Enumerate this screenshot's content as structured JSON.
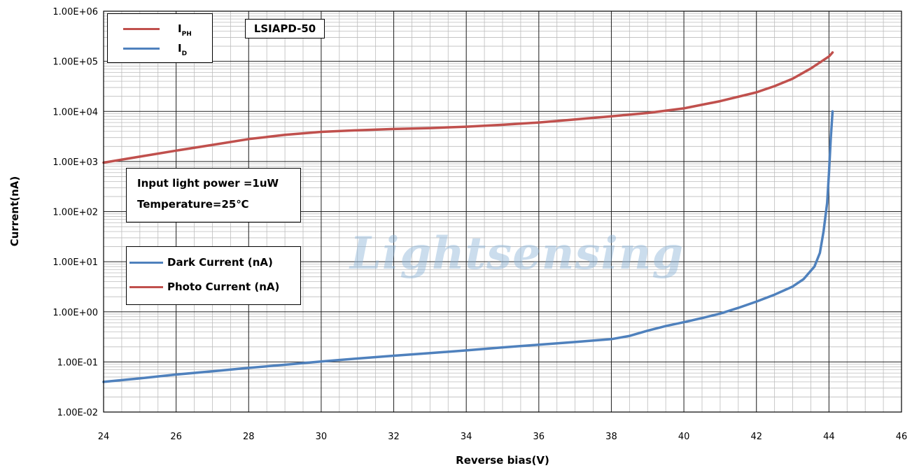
{
  "chart_data": {
    "type": "line",
    "xlabel": "Reverse bias(V)",
    "ylabel": "Current(nA)",
    "xlim": [
      24,
      46
    ],
    "ylim": [
      0.01,
      1000000
    ],
    "yscale": "log",
    "x_ticks": [
      "24",
      "26",
      "28",
      "30",
      "32",
      "34",
      "36",
      "38",
      "40",
      "42",
      "44",
      "46"
    ],
    "y_ticks": [
      "1.00E-02",
      "1.00E-01",
      "1.00E+00",
      "1.00E+01",
      "1.00E+02",
      "1.00E+03",
      "1.00E+04",
      "1.00E+05",
      "1.00E+06"
    ],
    "grid": true,
    "series": [
      {
        "name": "Photo Current (nA)",
        "color": "#c0504d",
        "x": [
          24,
          25,
          26,
          27,
          28,
          29,
          30,
          31,
          32,
          33,
          34,
          35,
          36,
          37,
          38,
          39,
          40,
          41,
          42,
          42.5,
          43,
          43.5,
          43.8,
          44,
          44.1
        ],
        "y": [
          950,
          1250,
          1650,
          2150,
          2800,
          3400,
          3900,
          4200,
          4450,
          4650,
          4950,
          5400,
          6000,
          6900,
          8000,
          9300,
          11500,
          16000,
          24000,
          32000,
          45000,
          72000,
          100000,
          125000,
          150000
        ]
      },
      {
        "name": "Dark Current (nA)",
        "color": "#4f81bd",
        "x": [
          24,
          25,
          26,
          27,
          28,
          29,
          30,
          31,
          32,
          33,
          34,
          35,
          36,
          37,
          38,
          38.5,
          39,
          39.5,
          40,
          40.5,
          41,
          41.5,
          42,
          42.5,
          43,
          43.3,
          43.6,
          43.75,
          43.85,
          43.95,
          44.0,
          44.05,
          44.1
        ],
        "y": [
          0.04,
          0.047,
          0.056,
          0.065,
          0.076,
          0.088,
          0.102,
          0.117,
          0.133,
          0.15,
          0.17,
          0.195,
          0.22,
          0.25,
          0.285,
          0.33,
          0.42,
          0.52,
          0.62,
          0.75,
          0.92,
          1.2,
          1.6,
          2.2,
          3.2,
          4.5,
          8,
          15,
          40,
          150,
          600,
          3000,
          10000
        ]
      }
    ]
  },
  "legend_top": {
    "items": [
      {
        "main": "I",
        "sub": "PH",
        "color": "#c0504d"
      },
      {
        "main": "I",
        "sub": "D",
        "color": "#4f81bd"
      }
    ]
  },
  "model_label": "LSIAPD-50",
  "conditions": {
    "line1": "Input light power =1uW",
    "line2": "Temperature=25℃"
  },
  "legend_bottom": {
    "items": [
      {
        "label": "Dark Current (nA)",
        "color": "#4f81bd"
      },
      {
        "label": "Photo Current (nA)",
        "color": "#c0504d"
      }
    ]
  },
  "watermark": "Lightsensing"
}
